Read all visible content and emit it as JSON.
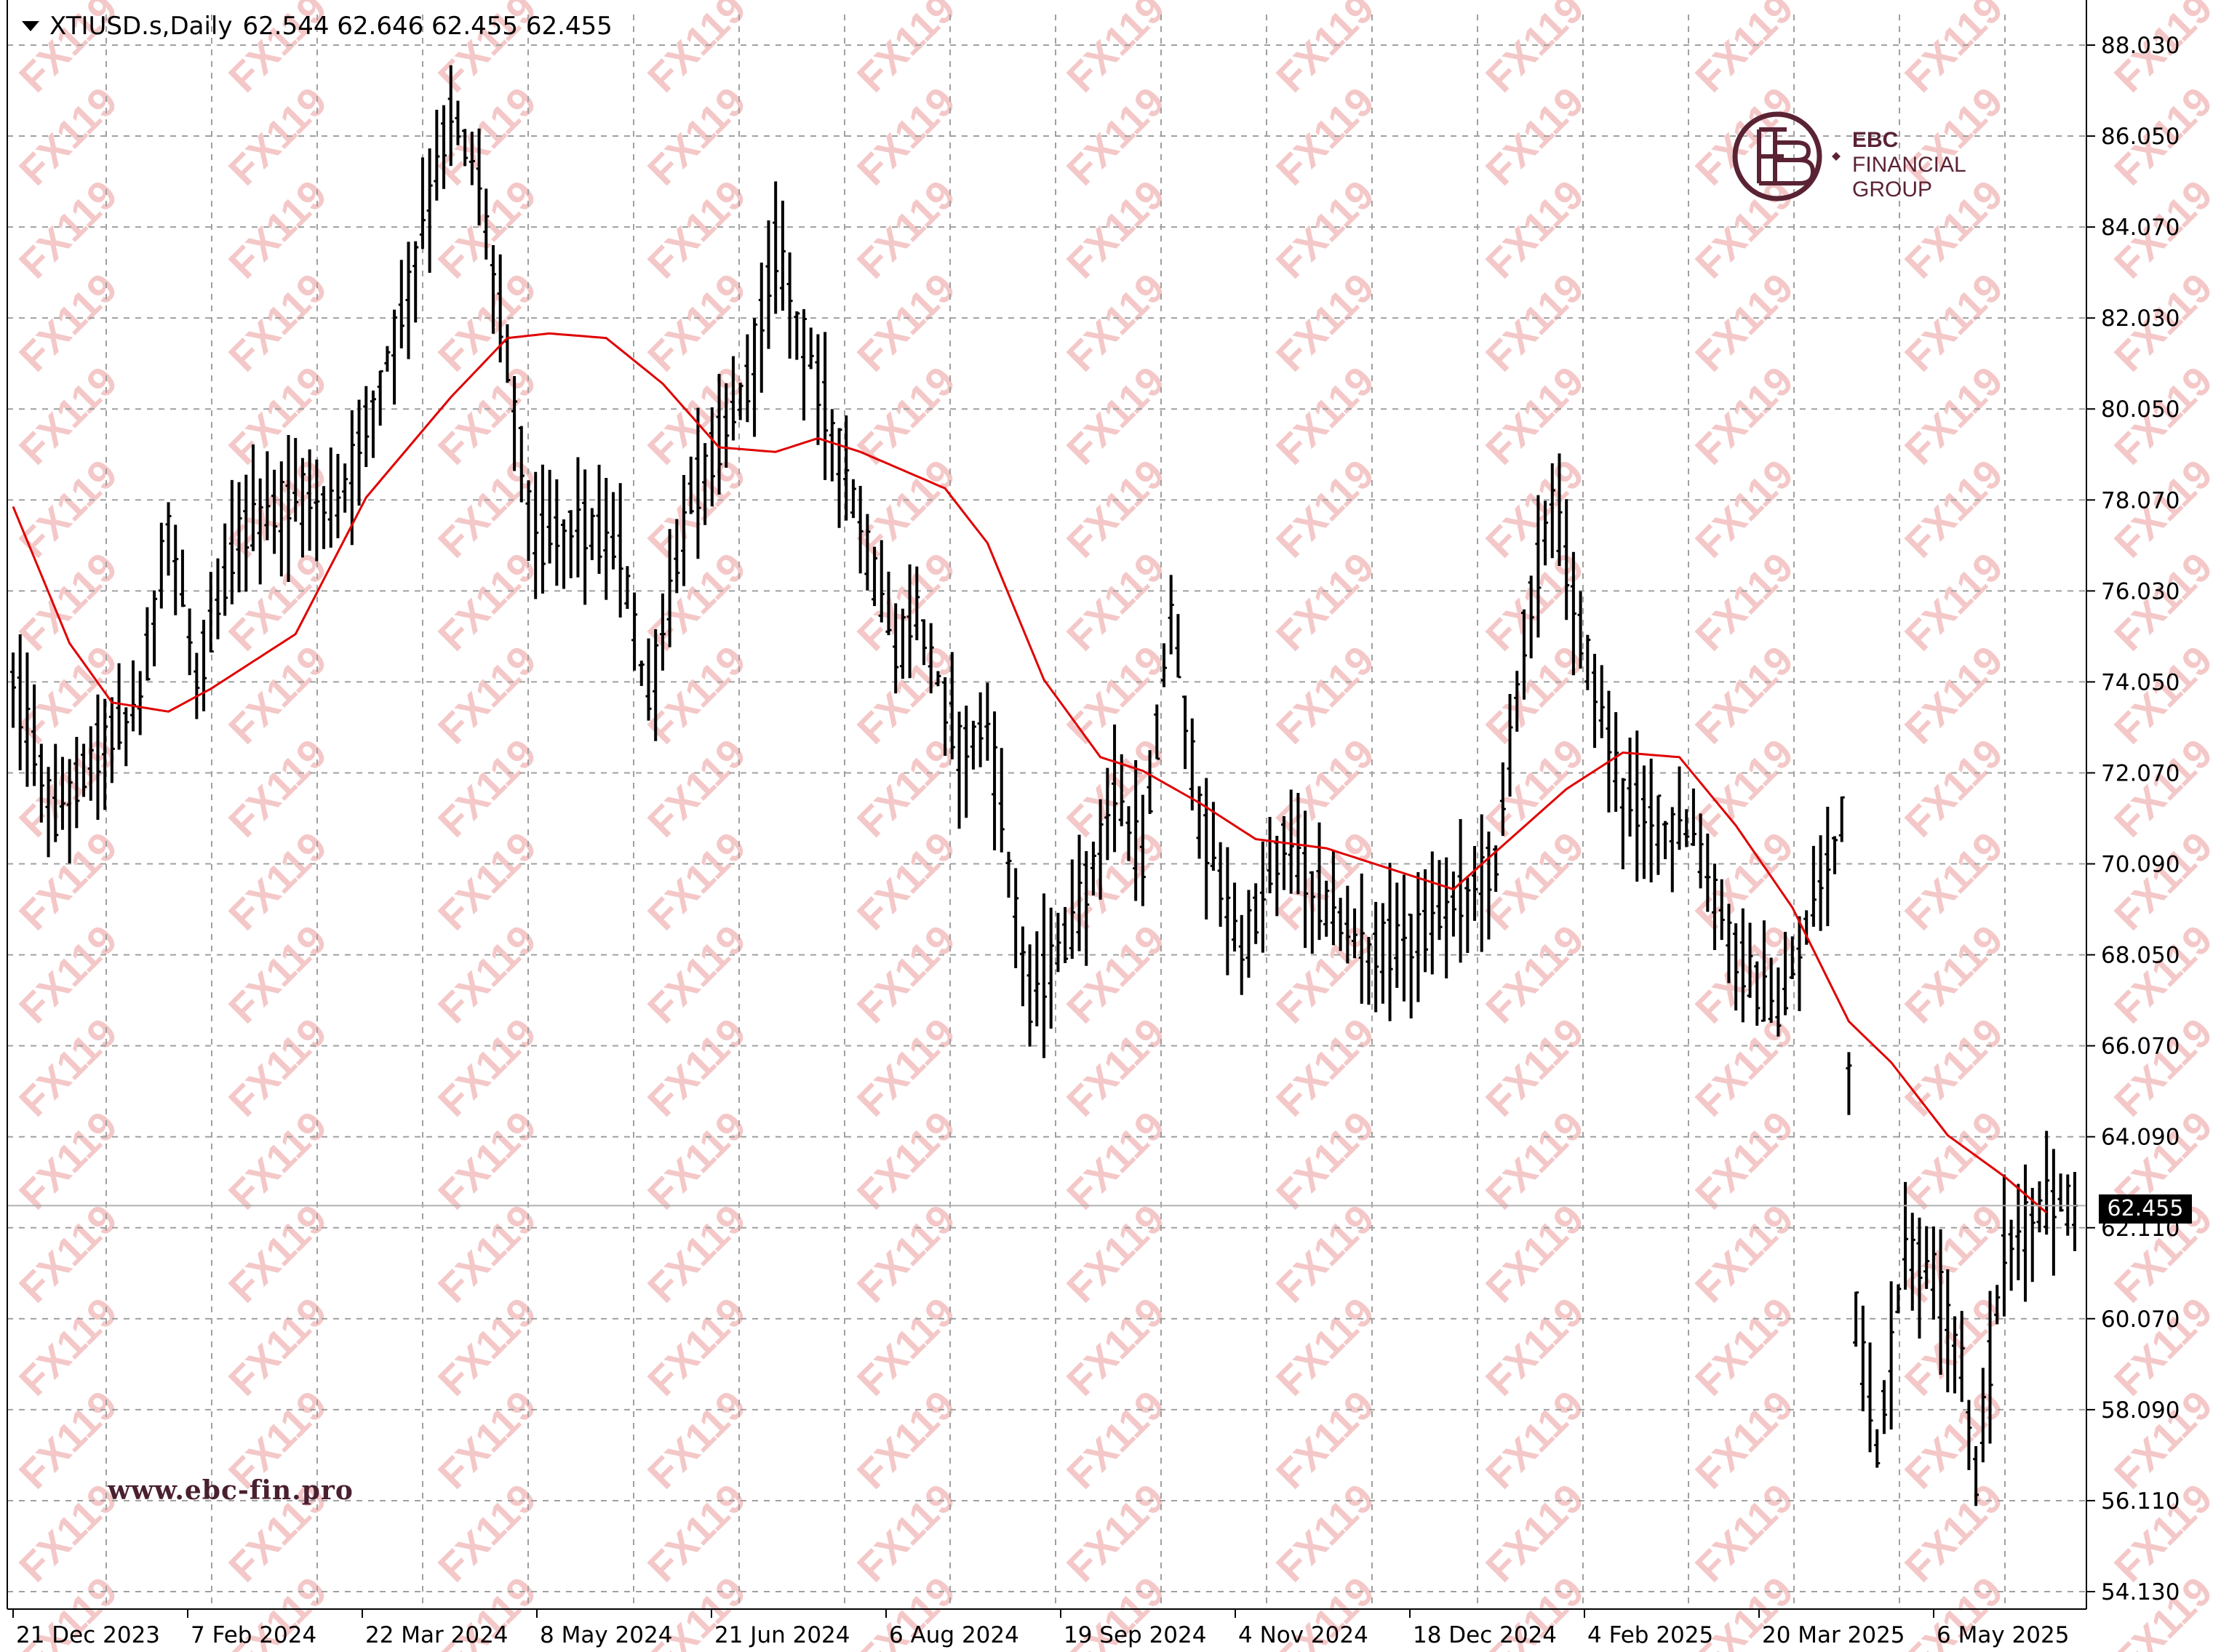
{
  "header": {
    "symbol": "XTIUSD.s,Daily",
    "ohlc": "62.544 62.646 62.455 62.455"
  },
  "watermark": {
    "brand_name": "EBC",
    "brand_sub1": "FINANCIAL",
    "brand_sub2": "GROUP",
    "url": "www.ebc-fin.pro",
    "tile_text": "FX119"
  },
  "current_price": "62.455",
  "colors": {
    "candle": "#000000",
    "ma": "#e00000",
    "grid": "#a0a0a0",
    "watermark": "#f4c8c8",
    "brand": "#5a2334"
  },
  "chart_data": {
    "type": "bar",
    "subtype": "ohlc",
    "symbol": "XTIUSD.s",
    "timeframe": "Daily",
    "title": "",
    "y_ticks": [
      "88.030",
      "86.050",
      "84.070",
      "82.030",
      "80.050",
      "78.070",
      "76.030",
      "74.050",
      "72.070",
      "70.090",
      "68.050",
      "66.070",
      "64.090",
      "62.110",
      "60.070",
      "58.090",
      "56.110",
      "54.130"
    ],
    "x_tick_labels": [
      "21 Dec 2023",
      "7 Feb 2024",
      "22 Mar 2024",
      "8 May 2024",
      "21 Jun 2024",
      "6 Aug 2024",
      "19 Sep 2024",
      "4 Nov 2024",
      "18 Dec 2024",
      "4 Feb 2025",
      "20 Mar 2025",
      "6 May 2025"
    ],
    "ylim": [
      53.6,
      88.6
    ],
    "grid": true,
    "price_anchors": [
      [
        0,
        74.0
      ],
      [
        6,
        71.0
      ],
      [
        12,
        72.5
      ],
      [
        18,
        73.5
      ],
      [
        22,
        77.5
      ],
      [
        26,
        74.0
      ],
      [
        32,
        77.2
      ],
      [
        40,
        78.0
      ],
      [
        46,
        77.8
      ],
      [
        55,
        82.0
      ],
      [
        62,
        86.5
      ],
      [
        66,
        85.0
      ],
      [
        70,
        81.0
      ],
      [
        74,
        77.0
      ],
      [
        80,
        77.5
      ],
      [
        86,
        76.8
      ],
      [
        90,
        73.5
      ],
      [
        96,
        78.0
      ],
      [
        104,
        80.5
      ],
      [
        108,
        83.5
      ],
      [
        112,
        81.5
      ],
      [
        118,
        78.5
      ],
      [
        125,
        74.5
      ],
      [
        128,
        75.5
      ],
      [
        134,
        72.5
      ],
      [
        138,
        73.0
      ],
      [
        144,
        67.0
      ],
      [
        150,
        68.5
      ],
      [
        156,
        71.5
      ],
      [
        160,
        70.0
      ],
      [
        164,
        75.5
      ],
      [
        168,
        71.0
      ],
      [
        174,
        68.0
      ],
      [
        180,
        70.5
      ],
      [
        186,
        69.0
      ],
      [
        192,
        68.0
      ],
      [
        200,
        68.5
      ],
      [
        210,
        70.0
      ],
      [
        214,
        75.0
      ],
      [
        218,
        78.0
      ],
      [
        222,
        75.0
      ],
      [
        228,
        71.5
      ],
      [
        232,
        71.0
      ],
      [
        238,
        70.5
      ],
      [
        244,
        68.0
      ],
      [
        250,
        66.5
      ],
      [
        256,
        69.5
      ],
      [
        259,
        71.0
      ],
      [
        261,
        60.0
      ],
      [
        264,
        57.0
      ],
      [
        268,
        61.5
      ],
      [
        272,
        61.0
      ],
      [
        276,
        59.0
      ],
      [
        278,
        56.5
      ],
      [
        282,
        61.5
      ],
      [
        288,
        62.5
      ],
      [
        292,
        62.455
      ]
    ],
    "ma_anchors": [
      [
        0,
        77.8
      ],
      [
        8,
        74.8
      ],
      [
        14,
        73.5
      ],
      [
        22,
        73.3
      ],
      [
        28,
        73.8
      ],
      [
        40,
        75.0
      ],
      [
        50,
        78.0
      ],
      [
        62,
        80.2
      ],
      [
        70,
        81.5
      ],
      [
        76,
        81.6
      ],
      [
        84,
        81.5
      ],
      [
        92,
        80.5
      ],
      [
        100,
        79.1
      ],
      [
        108,
        79.0
      ],
      [
        114,
        79.3
      ],
      [
        120,
        79.0
      ],
      [
        126,
        78.6
      ],
      [
        132,
        78.2
      ],
      [
        138,
        77.0
      ],
      [
        146,
        74.0
      ],
      [
        154,
        72.3
      ],
      [
        160,
        72.0
      ],
      [
        168,
        71.3
      ],
      [
        176,
        70.5
      ],
      [
        186,
        70.3
      ],
      [
        196,
        69.8
      ],
      [
        204,
        69.4
      ],
      [
        212,
        70.5
      ],
      [
        220,
        71.6
      ],
      [
        228,
        72.4
      ],
      [
        236,
        72.3
      ],
      [
        244,
        70.8
      ],
      [
        252,
        69.0
      ],
      [
        260,
        66.5
      ],
      [
        266,
        65.6
      ],
      [
        274,
        64.0
      ],
      [
        282,
        63.1
      ],
      [
        288,
        62.3
      ]
    ],
    "ma_start": 77.8,
    "ma_end": 62.1,
    "last_close": 62.455
  }
}
